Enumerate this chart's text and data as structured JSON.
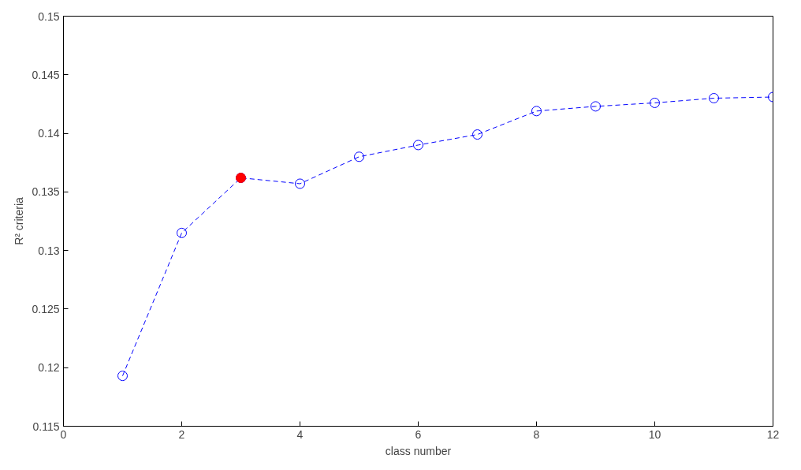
{
  "chart_data": {
    "type": "line",
    "xlabel": "class number",
    "ylabel": "R² criteria",
    "x": [
      1,
      2,
      3,
      4,
      5,
      6,
      7,
      8,
      9,
      10,
      11,
      12
    ],
    "series": [
      {
        "color": "#0000ff",
        "values": [
          0.1193,
          0.1315,
          0.1362,
          0.1357,
          0.138,
          0.139,
          0.1399,
          0.1419,
          0.1423,
          0.1426,
          0.143,
          0.1431
        ],
        "marker": "circle",
        "line_style": "dashed"
      },
      {
        "type": "scatter",
        "x": [
          3
        ],
        "color": "#ff0000",
        "values": [
          0.1362
        ],
        "marker": "circle"
      }
    ],
    "xlim": [
      0,
      12
    ],
    "ylim": [
      0.115,
      0.15
    ],
    "xticks": [
      0,
      2,
      4,
      6,
      8,
      10,
      12
    ],
    "yticks": [
      0.115,
      0.12,
      0.125,
      0.13,
      0.135,
      0.14,
      0.145,
      0.15
    ],
    "grid": false
  }
}
